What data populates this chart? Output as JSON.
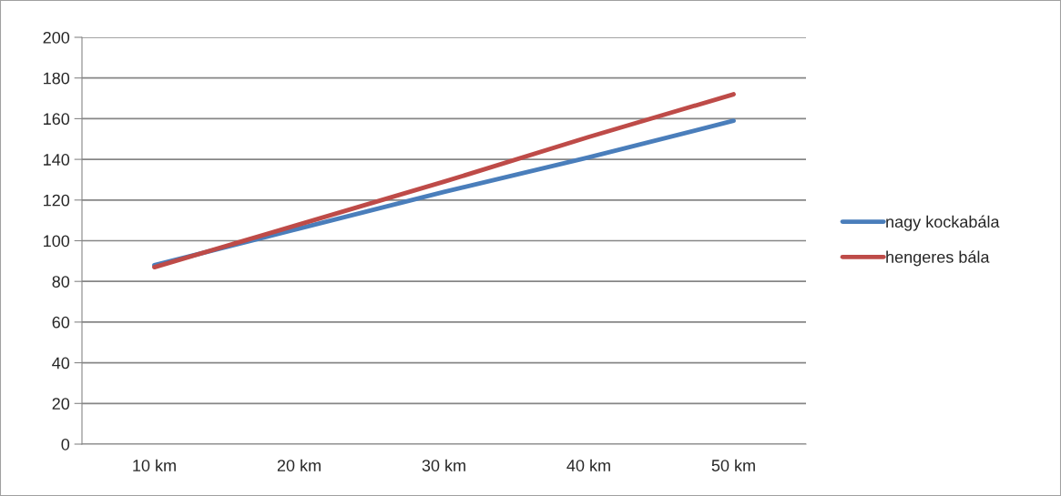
{
  "chart_data": {
    "type": "line",
    "categories": [
      "10 km",
      "20 km",
      "30 km",
      "40 km",
      "50 km"
    ],
    "series": [
      {
        "name": "nagy kockabála",
        "color": "#4a7ebb",
        "values": [
          88,
          106,
          124,
          141,
          159
        ]
      },
      {
        "name": "hengeres bála",
        "color": "#be4b48",
        "values": [
          87,
          108,
          129,
          151,
          172
        ]
      }
    ],
    "ylim": [
      0,
      200
    ],
    "yticks": [
      0,
      20,
      40,
      60,
      80,
      100,
      120,
      140,
      160,
      180,
      200
    ],
    "grid": "y",
    "legend": "right",
    "marker": "none",
    "line_style": "solid"
  }
}
